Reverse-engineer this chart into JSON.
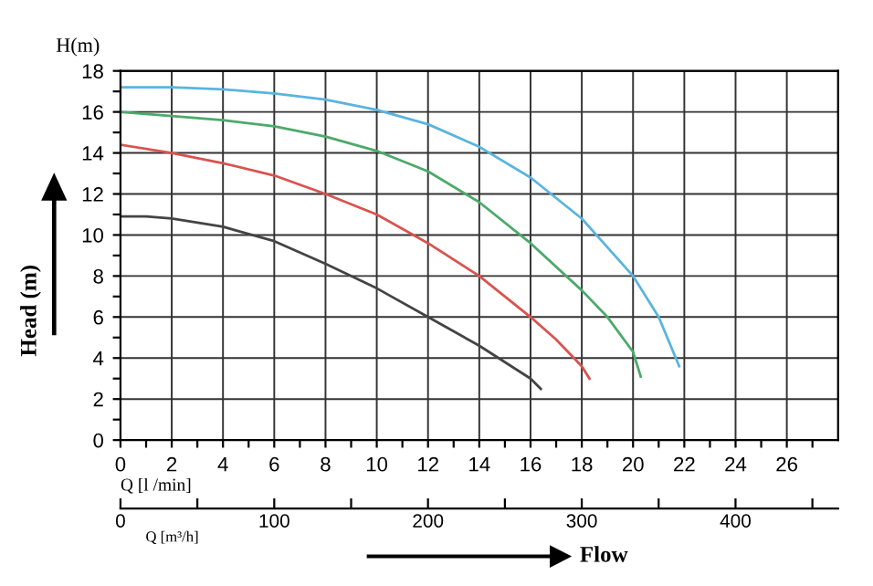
{
  "chart_data": {
    "type": "line",
    "xlabel": "Q [m³/h]",
    "ylabel": "Head (m)",
    "x2label": "Q [l /min]",
    "annotations": [
      "H(m)",
      "Flow"
    ],
    "series": [
      {
        "color": "#5ab4e0",
        "x": [
          0,
          2,
          4,
          6,
          8,
          10,
          12,
          14,
          16,
          18,
          20,
          21,
          21.8
        ],
        "values": [
          17.2,
          17.2,
          17.1,
          16.9,
          16.6,
          16.1,
          15.4,
          14.3,
          12.8,
          10.8,
          8.0,
          6.0,
          3.6
        ]
      },
      {
        "color": "#4caa6a",
        "x": [
          0,
          2,
          4,
          6,
          8,
          10,
          12,
          14,
          16,
          18,
          19,
          20,
          20.3
        ],
        "values": [
          16.0,
          15.8,
          15.6,
          15.3,
          14.8,
          14.1,
          13.1,
          11.6,
          9.6,
          7.3,
          6.0,
          4.3,
          3.1
        ]
      },
      {
        "color": "#d9534f",
        "x": [
          0,
          2,
          4,
          6,
          8,
          10,
          12,
          14,
          16,
          17,
          18,
          18.3
        ],
        "values": [
          14.4,
          14.0,
          13.5,
          12.9,
          12.0,
          11.0,
          9.6,
          8.0,
          6.0,
          4.9,
          3.6,
          3.0
        ]
      },
      {
        "color": "#444444",
        "x": [
          0,
          1,
          2,
          4,
          6,
          8,
          10,
          12,
          14,
          16,
          16.4
        ],
        "values": [
          10.9,
          10.9,
          10.8,
          10.4,
          9.7,
          8.6,
          7.4,
          6.0,
          4.6,
          3.0,
          2.5
        ]
      }
    ],
    "xlim": [
      0,
      28
    ],
    "ylim": [
      0,
      18
    ],
    "xticks": [
      0,
      {
        "value": 1,
        "label": null
      },
      2,
      {
        "value": 3,
        "label": null
      },
      4,
      {
        "value": 5,
        "label": null
      },
      6,
      {
        "value": 7,
        "label": null
      },
      8,
      {
        "value": 9,
        "label": null
      },
      10,
      {
        "value": 11,
        "label": null
      },
      12,
      {
        "value": 13,
        "label": null
      },
      14,
      {
        "value": 15,
        "label": null
      },
      16,
      {
        "value": 17,
        "label": null
      },
      18,
      {
        "value": 19,
        "label": null
      },
      20,
      {
        "value": 21,
        "label": null
      },
      22,
      {
        "value": 23,
        "label": null
      },
      24,
      {
        "value": 25,
        "label": null
      },
      26,
      {
        "value": 27,
        "label": null
      }
    ],
    "yticks": [
      0,
      {
        "value": 1,
        "label": null
      },
      2,
      {
        "value": 3,
        "label": null
      },
      4,
      {
        "value": 5,
        "label": null
      },
      6,
      {
        "value": 7,
        "label": null
      },
      8,
      {
        "value": 9,
        "label": null
      },
      10,
      {
        "value": 11,
        "label": null
      },
      12,
      {
        "value": 13,
        "label": null
      },
      14,
      {
        "value": 15,
        "label": null
      },
      16,
      {
        "value": 17,
        "label": null
      },
      18
    ],
    "x2lim": [
      0,
      466.7
    ],
    "x2ticks": [
      0,
      {
        "value": 50,
        "label": null
      },
      100,
      {
        "value": 150,
        "label": null
      },
      200,
      {
        "value": 250,
        "label": null
      },
      300,
      {
        "value": 350,
        "label": null
      },
      400,
      {
        "value": 450,
        "label": null
      }
    ],
    "grid": true,
    "line_style": "solid",
    "marker": "none"
  }
}
